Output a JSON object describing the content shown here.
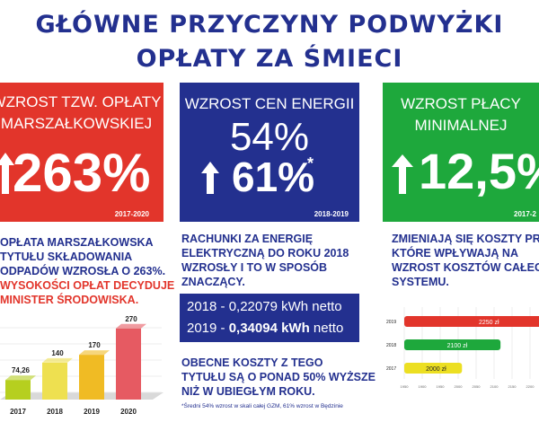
{
  "title": {
    "line1": "GŁÓWNE PRZYCZYNY PODWYŻKI",
    "line2": "OPŁATY ZA ŚMIECI"
  },
  "panels": [
    {
      "head1": "WZROST TZW. OPŁATY",
      "head2": "MARSZAŁKOWSKIEJ",
      "big": "263%",
      "period": "2017-2020",
      "color": "#e2352b"
    },
    {
      "head1": "WZROST CEN ENERGII",
      "big1": "54%",
      "big2": "61%",
      "star": "*",
      "period": "2018-2019",
      "color": "#23308f"
    },
    {
      "head1": "WZROST PŁACY",
      "head2": "MINIMALNEJ",
      "big": "12,5%",
      "period": "2017-2",
      "color": "#1ea83c"
    }
  ],
  "left_text": {
    "l1": "OPŁATA MARSZAŁKOWSKA",
    "l2": "TYTUŁU SKŁADOWANIA",
    "l3": "ODPADÓW WZROSŁA O 263%.",
    "r1": "WYSOKOŚCI OPŁAT DECYDUJE",
    "r2": "MINISTER ŚRODOWISKA."
  },
  "mid_text": {
    "l1": "RACHUNKI ZA ENERGIĘ",
    "l2": "ELEKTRYCZNĄ DO ROKU 2018",
    "l3": "WZROSŁY I TO W SPOSÓB",
    "l4": "ZNACZĄCY.",
    "kwh1_label": "2018 - 0,22079 kWh netto",
    "kwh2_year": "2019 - ",
    "kwh2_value": "0,34094 kWh",
    "kwh2_unit": " netto",
    "b1": "OBECNE KOSZTY Z TEGO",
    "b2": "TYTUŁU SĄ O PONAD 50% WYŻSZE",
    "b3": "NIŻ W UBIEGŁYM ROKU.",
    "footnote": "*Średni 54% wzrost w skali całej GZM, 61% wzrost w Będzinie"
  },
  "right_text": {
    "l1": "ZMIENIAJĄ SIĘ KOSZTY PRA",
    "l2": "KTÓRE WPŁYWAJĄ NA",
    "l3": "WZROST KOSZTÓW CAŁEGO",
    "l4": "SYSTEMU."
  },
  "chart_data": [
    {
      "type": "bar",
      "categories": [
        "2017",
        "2018",
        "2019",
        "2020"
      ],
      "values": [
        74.26,
        140,
        170,
        270
      ],
      "value_labels": [
        "74,26",
        "140",
        "170",
        "270"
      ],
      "colors": [
        "#b6cf1f",
        "#eee050",
        "#f0bb24",
        "#e65a62"
      ],
      "ylim": [
        0,
        300
      ]
    },
    {
      "type": "bar",
      "orientation": "horizontal",
      "categories": [
        "2019",
        "2018",
        "2017"
      ],
      "values": [
        2250,
        2100,
        2000
      ],
      "value_labels": [
        "2250 zł",
        "2100 zł",
        "2000 zł"
      ],
      "colors": [
        "#e2352b",
        "#1ea83c",
        "#ecdf22"
      ],
      "xticks": [
        "1950",
        "1900",
        "1950",
        "2000",
        "2050",
        "2100",
        "2150",
        "2200"
      ]
    }
  ]
}
